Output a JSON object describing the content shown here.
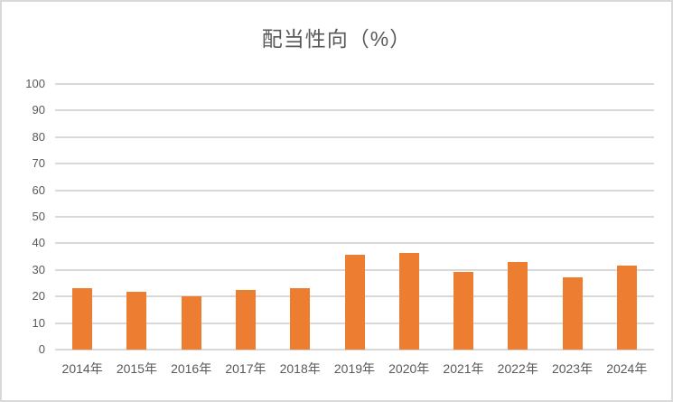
{
  "chart": {
    "title": "配当性向（%）",
    "background_color": "#FFFFFF",
    "border_color": "#D9D9D9",
    "bar_color": "#ED7D31",
    "gridline_color": "#D9D9D9",
    "text_color": "#595959",
    "title_color": "#595959"
  },
  "chart_data": {
    "type": "bar",
    "title": "配当性向（%）",
    "categories": [
      "2014年",
      "2015年",
      "2016年",
      "2017年",
      "2018年",
      "2019年",
      "2020年",
      "2021年",
      "2022年",
      "2023年",
      "2024年"
    ],
    "values": [
      23.3,
      21.7,
      20.0,
      22.4,
      23.1,
      35.8,
      36.5,
      29.4,
      33.0,
      27.3,
      31.5
    ],
    "xlabel": "",
    "ylabel": "",
    "ylim": [
      0,
      100
    ],
    "yticks": [
      0,
      10,
      20,
      30,
      40,
      50,
      60,
      70,
      80,
      90,
      100
    ],
    "grid": true,
    "legend": false,
    "legend_position": "none"
  }
}
